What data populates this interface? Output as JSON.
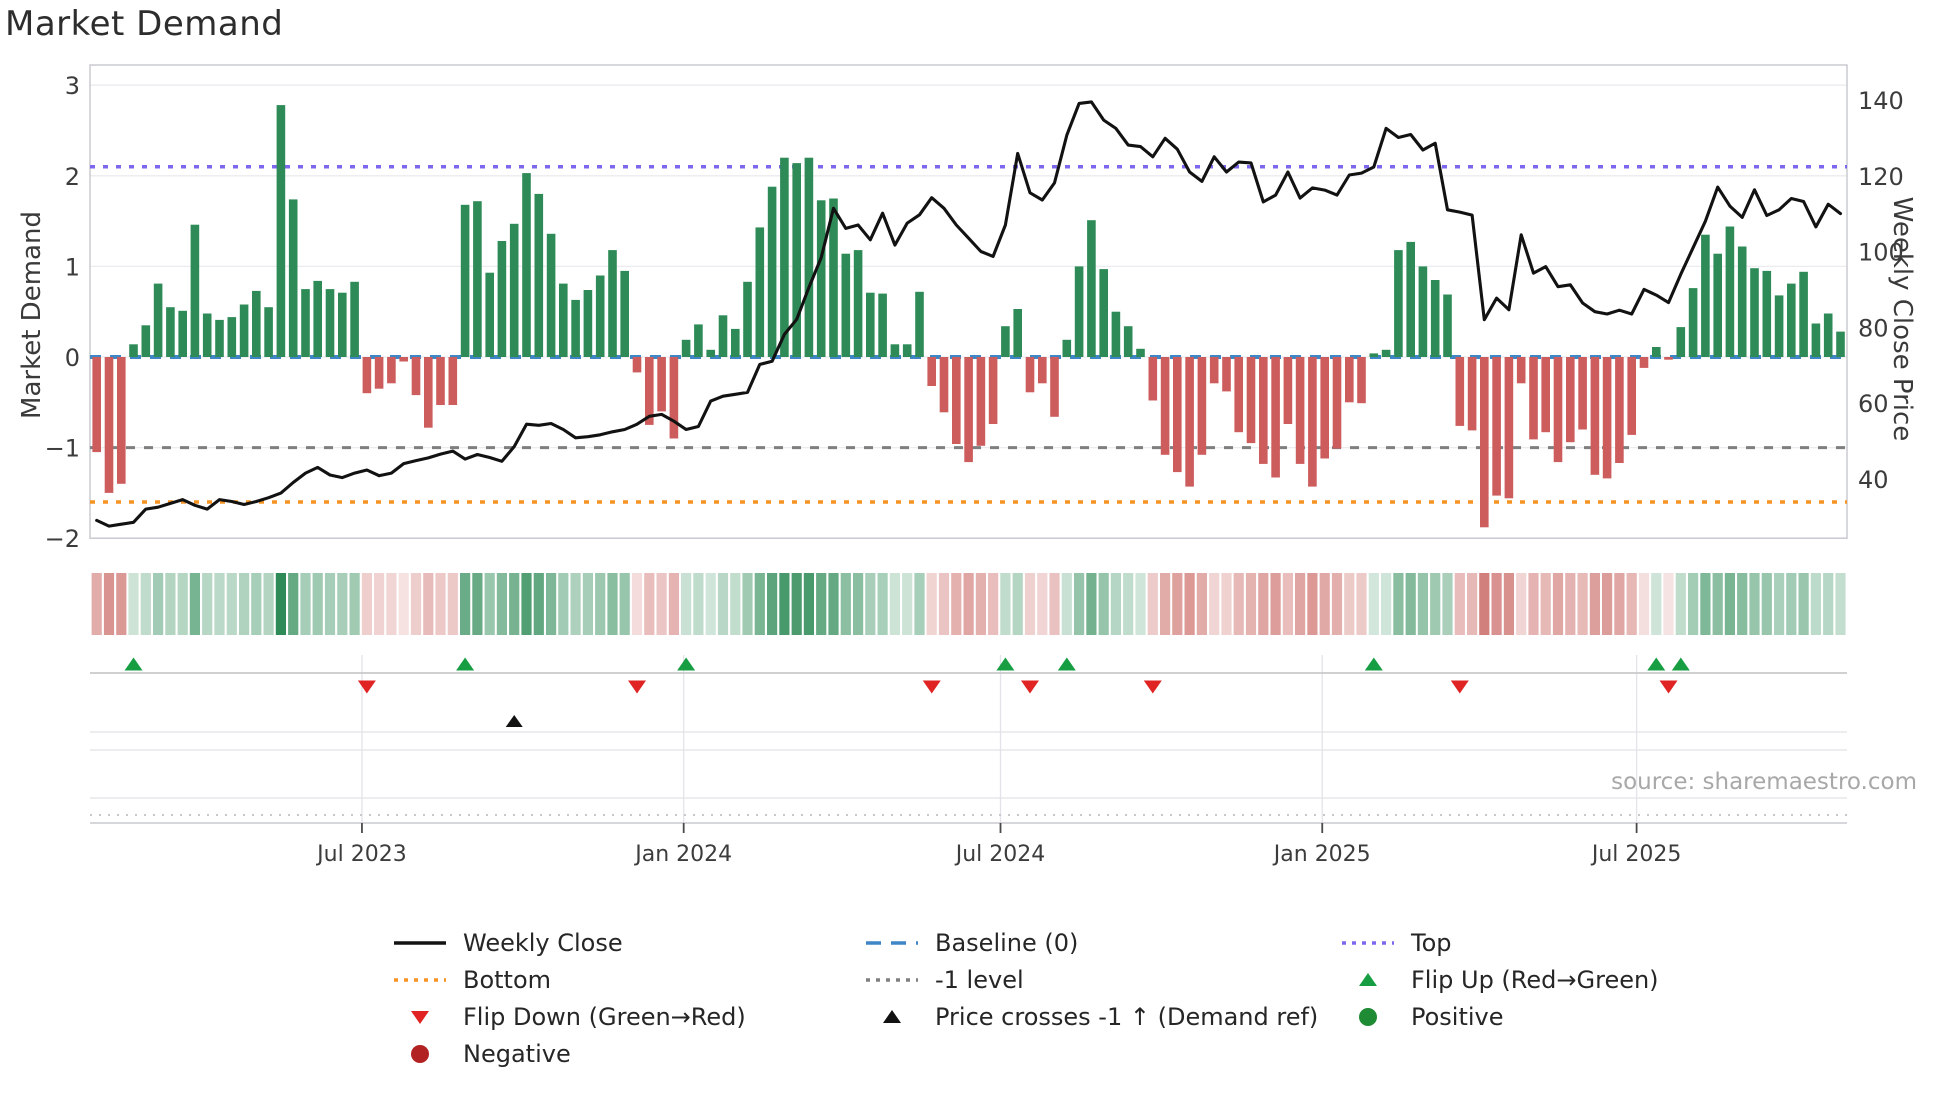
{
  "title": "Market Demand",
  "source_credit": "source: sharemaestro.com",
  "axes": {
    "left_label": "Market Demand",
    "right_label": "Weekly Close Price",
    "left_ticks": [
      {
        "label": "3",
        "value": 3
      },
      {
        "label": "2",
        "value": 2
      },
      {
        "label": "1",
        "value": 1
      },
      {
        "label": "0",
        "value": 0
      },
      {
        "label": "−1",
        "value": -1
      },
      {
        "label": "−2",
        "value": -2
      }
    ],
    "right_ticks": [
      {
        "label": "140",
        "value": 140
      },
      {
        "label": "120",
        "value": 120
      },
      {
        "label": "100",
        "value": 100
      },
      {
        "label": "80",
        "value": 80
      },
      {
        "label": "60",
        "value": 60
      },
      {
        "label": "40",
        "value": 40
      }
    ],
    "x_ticks": [
      {
        "label": "Jul 2023",
        "week": 21.6
      },
      {
        "label": "Jan 2024",
        "week": 47.8
      },
      {
        "label": "Jul 2024",
        "week": 73.6
      },
      {
        "label": "Jan 2025",
        "week": 99.8
      },
      {
        "label": "Jul 2025",
        "week": 125.4
      }
    ]
  },
  "chart_data": {
    "type": "bar+line",
    "x_unit": "week",
    "weeks": 143,
    "demand_ylim": [
      -2,
      3.22
    ],
    "price_ylim": [
      24.4,
      149.2
    ],
    "levels": {
      "baseline": 0,
      "top": 2.1,
      "bottom": -1.6,
      "minus_one": -1
    },
    "series": [
      {
        "name": "Market Demand",
        "type": "bar",
        "axis": "left",
        "values": [
          -1.05,
          -1.5,
          -1.4,
          0.14,
          0.35,
          0.81,
          0.55,
          0.51,
          1.46,
          0.48,
          0.41,
          0.44,
          0.58,
          0.73,
          0.55,
          2.78,
          1.74,
          0.75,
          0.84,
          0.75,
          0.71,
          0.83,
          -0.4,
          -0.35,
          -0.29,
          -0.05,
          -0.42,
          -0.78,
          -0.53,
          -0.53,
          1.68,
          1.72,
          0.93,
          1.28,
          1.47,
          2.03,
          1.8,
          1.36,
          0.81,
          0.63,
          0.74,
          0.9,
          1.18,
          0.95,
          -0.17,
          -0.75,
          -0.6,
          -0.9,
          0.19,
          0.36,
          0.08,
          0.46,
          0.31,
          0.83,
          1.43,
          1.88,
          2.2,
          2.14,
          2.2,
          1.73,
          1.75,
          1.14,
          1.18,
          0.71,
          0.7,
          0.14,
          0.14,
          0.72,
          -0.32,
          -0.61,
          -0.96,
          -1.16,
          -0.98,
          -0.74,
          0.34,
          0.53,
          -0.39,
          -0.29,
          -0.66,
          0.19,
          1.0,
          1.51,
          0.97,
          0.5,
          0.34,
          0.09,
          -0.48,
          -1.08,
          -1.27,
          -1.43,
          -1.08,
          -0.29,
          -0.38,
          -0.83,
          -0.95,
          -1.18,
          -1.33,
          -0.74,
          -1.18,
          -1.43,
          -1.12,
          -1.01,
          -0.5,
          -0.51,
          0.04,
          0.08,
          1.18,
          1.27,
          1.0,
          0.85,
          0.69,
          -0.76,
          -0.81,
          -1.88,
          -1.53,
          -1.56,
          -0.29,
          -0.91,
          -0.83,
          -1.16,
          -0.94,
          -0.8,
          -1.3,
          -1.34,
          -1.17,
          -0.86,
          -0.12,
          0.11,
          -0.03,
          0.33,
          0.76,
          1.35,
          1.14,
          1.44,
          1.22,
          0.98,
          0.95,
          0.68,
          0.81,
          0.94,
          0.37,
          0.48,
          0.28
        ]
      },
      {
        "name": "Weekly Close",
        "type": "line",
        "axis": "right",
        "values": [
          29,
          27.5,
          28,
          28.5,
          32,
          32.5,
          33.5,
          34.5,
          33,
          32,
          34.5,
          34,
          33.2,
          34,
          35,
          36.2,
          39,
          41.5,
          43,
          41,
          40.3,
          41.5,
          42.3,
          40.8,
          41.5,
          44,
          44.8,
          45.5,
          46.5,
          47.3,
          45.2,
          46.4,
          45.6,
          44.6,
          48.5,
          54.4,
          54.1,
          54.6,
          53,
          50.8,
          51.1,
          51.6,
          52.4,
          53,
          54.4,
          56.5,
          57,
          55.2,
          53,
          53.8,
          60.5,
          61.8,
          62.3,
          62.8,
          70.2,
          71,
          78.1,
          82.1,
          90.5,
          98.4,
          111.4,
          106.1,
          107,
          103.1,
          110.1,
          101.7,
          107.5,
          109.7,
          114.2,
          111.4,
          107,
          103.5,
          100,
          98.7,
          107,
          125.9,
          115.5,
          113.6,
          118.1,
          130.7,
          139.1,
          139.5,
          134.7,
          132.5,
          128.1,
          127.7,
          125,
          129.9,
          127,
          121,
          118.5,
          125,
          121,
          123.6,
          123.4,
          113.1,
          114.9,
          121,
          114.1,
          116.8,
          116.2,
          114.9,
          120.2,
          120.7,
          122.3,
          132.5,
          130.1,
          130.9,
          126.8,
          128.6,
          111,
          110.4,
          109.6,
          82,
          87.7,
          84.6,
          104.4,
          94.3,
          96,
          90.7,
          91.2,
          86.4,
          84.1,
          83.5,
          84.5,
          83.5,
          90,
          88.5,
          86.5,
          94,
          101,
          108,
          117,
          112,
          109,
          116.3,
          109.5,
          111,
          114,
          113.2,
          106.5,
          112.5,
          110
        ]
      }
    ],
    "markers": {
      "flip_up_weeks": [
        3,
        30,
        48,
        74,
        79,
        104,
        127,
        129
      ],
      "flip_down_weeks": [
        22,
        44,
        68,
        76,
        86,
        111,
        128
      ],
      "price_cross_week": 34
    },
    "heatmap": "per-week cell, green for positive demand, red for negative, intensity = |demand|"
  },
  "legend": {
    "items": [
      {
        "label": "Weekly Close",
        "swatch": "line",
        "color": "#121212",
        "col": 1,
        "row": 1
      },
      {
        "label": "Baseline (0)",
        "swatch": "dashed-line",
        "color": "#3e86c6",
        "col": 2,
        "row": 1
      },
      {
        "label": "Top",
        "swatch": "dotted-line",
        "color": "#7b68ee",
        "col": 3,
        "row": 1
      },
      {
        "label": "Bottom",
        "swatch": "dotted-line",
        "color": "#f59422",
        "col": 1,
        "row": 2
      },
      {
        "label": "-1 level",
        "swatch": "dotted-line",
        "color": "#7f7f7f",
        "col": 2,
        "row": 2
      },
      {
        "label": "Flip Up (Red→Green)",
        "swatch": "triangle-up",
        "color": "#179e43",
        "col": 3,
        "row": 2
      },
      {
        "label": "Flip Down (Green→Red)",
        "swatch": "triangle-down",
        "color": "#e02424",
        "col": 1,
        "row": 3
      },
      {
        "label": "Price crosses -1 ↑ (Demand ref)",
        "swatch": "triangle-up",
        "color": "#121212",
        "col": 2,
        "row": 3
      },
      {
        "label": "Positive",
        "swatch": "circle",
        "color": "#1f8b34",
        "col": 3,
        "row": 3
      },
      {
        "label": "Negative",
        "swatch": "circle",
        "color": "#b22222",
        "col": 1,
        "row": 4
      }
    ]
  },
  "colors": {
    "bar_positive": "#2e8b57",
    "bar_negative": "#cd5c5c",
    "price_line": "#121212",
    "baseline": "#3e86c6",
    "top_line": "#7b68ee",
    "bottom_line": "#f59422",
    "minus_one_line": "#7f7f7f",
    "flip_up": "#179e43",
    "flip_down": "#e02424",
    "price_cross": "#121212",
    "grid": "#ebebf0",
    "spine": "#c6c7ce",
    "tick_text": "#3c3c3c"
  }
}
